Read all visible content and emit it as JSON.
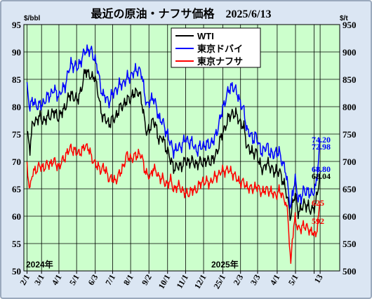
{
  "chart_data": {
    "type": "line",
    "title": "最近の原油・ナフサ価格　2025/6/13",
    "left_axis": {
      "unit": "$/bbl",
      "ylim": [
        50,
        95
      ],
      "ticks": [
        "50",
        "55",
        "60",
        "65",
        "70",
        "75",
        "80",
        "85",
        "90",
        "95"
      ]
    },
    "right_axis": {
      "unit": "$/t",
      "ylim": [
        500,
        950
      ],
      "ticks": [
        "500",
        "550",
        "600",
        "650",
        "700",
        "750",
        "800",
        "850",
        "900",
        "950"
      ]
    },
    "x_ticks": [
      "2/1",
      "3/1",
      "4/1",
      "5/1",
      "6/3",
      "7/1",
      "8/1",
      "9/2",
      "10/1",
      "11/1",
      "12/1",
      "25/1",
      "2/3",
      "3/3",
      "4/1",
      "5/1",
      "",
      "13"
    ],
    "year_labels": [
      "2024年",
      "2025年"
    ],
    "grid": true,
    "legend_position": "top-center",
    "colors": {
      "plot_bg": "#ccffcc",
      "wti": "#000000",
      "dubai": "#0000ff",
      "naphtha": "#ff0000"
    },
    "series": [
      {
        "name": "WTI",
        "axis": "left",
        "color": "#000000",
        "points": [
          [
            0,
            75.5
          ],
          [
            2,
            72.5
          ],
          [
            4,
            77
          ],
          [
            8,
            78
          ],
          [
            12,
            77.5
          ],
          [
            18,
            79
          ],
          [
            22,
            78
          ],
          [
            26,
            80
          ],
          [
            30,
            82.5
          ],
          [
            34,
            81
          ],
          [
            38,
            84
          ],
          [
            40,
            87
          ],
          [
            42,
            86
          ],
          [
            44,
            85
          ],
          [
            46,
            86
          ],
          [
            48,
            83
          ],
          [
            50,
            80
          ],
          [
            52,
            78
          ],
          [
            56,
            77
          ],
          [
            60,
            78
          ],
          [
            64,
            80
          ],
          [
            68,
            81
          ],
          [
            72,
            82
          ],
          [
            76,
            83
          ],
          [
            78,
            81
          ],
          [
            80,
            78
          ],
          [
            82,
            75
          ],
          [
            84,
            76
          ],
          [
            86,
            78
          ],
          [
            88,
            76
          ],
          [
            90,
            74
          ],
          [
            92,
            74.5
          ],
          [
            94,
            73
          ],
          [
            96,
            72
          ],
          [
            98,
            70
          ],
          [
            100,
            69
          ],
          [
            104,
            69
          ],
          [
            108,
            70
          ],
          [
            112,
            70
          ],
          [
            116,
            69.5
          ],
          [
            120,
            70
          ],
          [
            124,
            70
          ],
          [
            128,
            70.5
          ],
          [
            132,
            74
          ],
          [
            136,
            77
          ],
          [
            140,
            79
          ],
          [
            144,
            78
          ],
          [
            148,
            76
          ],
          [
            150,
            73
          ],
          [
            152,
            72
          ],
          [
            154,
            71.5
          ],
          [
            156,
            72
          ],
          [
            158,
            70
          ],
          [
            160,
            69
          ],
          [
            162,
            68.5
          ],
          [
            164,
            70
          ],
          [
            166,
            69
          ],
          [
            168,
            68
          ],
          [
            170,
            68.5
          ],
          [
            172,
            68
          ],
          [
            174,
            67
          ],
          [
            176,
            65.5
          ],
          [
            178,
            62.5
          ],
          [
            180,
            60
          ],
          [
            181,
            62
          ],
          [
            183,
            64
          ],
          [
            185,
            61
          ],
          [
            187,
            61
          ],
          [
            189,
            62.5
          ],
          [
            191,
            62
          ],
          [
            193,
            61
          ],
          [
            195,
            61.5
          ],
          [
            197,
            62
          ],
          [
            198,
            64
          ],
          [
            200,
            68.04
          ]
        ]
      },
      {
        "name": "東京ドバイ",
        "axis": "left",
        "color": "#0000ff",
        "points": [
          [
            0,
            83.5
          ],
          [
            2,
            80
          ],
          [
            4,
            81
          ],
          [
            8,
            80
          ],
          [
            12,
            81
          ],
          [
            18,
            83
          ],
          [
            22,
            82
          ],
          [
            26,
            84
          ],
          [
            30,
            88
          ],
          [
            34,
            87
          ],
          [
            38,
            89
          ],
          [
            40,
            90.5
          ],
          [
            42,
            90.3
          ],
          [
            44,
            90
          ],
          [
            46,
            89
          ],
          [
            48,
            87
          ],
          [
            50,
            84
          ],
          [
            52,
            82
          ],
          [
            56,
            81
          ],
          [
            60,
            83
          ],
          [
            64,
            84
          ],
          [
            68,
            85
          ],
          [
            72,
            86
          ],
          [
            76,
            87
          ],
          [
            78,
            86
          ],
          [
            80,
            83
          ],
          [
            82,
            80
          ],
          [
            84,
            81
          ],
          [
            86,
            82
          ],
          [
            88,
            80
          ],
          [
            90,
            78
          ],
          [
            92,
            77.5
          ],
          [
            94,
            76
          ],
          [
            96,
            75
          ],
          [
            98,
            73
          ],
          [
            100,
            72
          ],
          [
            104,
            72.5
          ],
          [
            108,
            74
          ],
          [
            112,
            73.5
          ],
          [
            116,
            72
          ],
          [
            120,
            73
          ],
          [
            124,
            73
          ],
          [
            128,
            74
          ],
          [
            132,
            78
          ],
          [
            136,
            82
          ],
          [
            140,
            84
          ],
          [
            144,
            82
          ],
          [
            148,
            79
          ],
          [
            150,
            76
          ],
          [
            152,
            75
          ],
          [
            154,
            74
          ],
          [
            156,
            75
          ],
          [
            158,
            73
          ],
          [
            160,
            72
          ],
          [
            162,
            72
          ],
          [
            164,
            73
          ],
          [
            166,
            71.5
          ],
          [
            168,
            71
          ],
          [
            170,
            72
          ],
          [
            172,
            71.5
          ],
          [
            174,
            70
          ],
          [
            176,
            69
          ],
          [
            178,
            65
          ],
          [
            180,
            61.5
          ],
          [
            181,
            64
          ],
          [
            183,
            66.5
          ],
          [
            185,
            63.5
          ],
          [
            187,
            63
          ],
          [
            189,
            65
          ],
          [
            191,
            64.5
          ],
          [
            193,
            64
          ],
          [
            195,
            64.5
          ],
          [
            197,
            65
          ],
          [
            198,
            67.5
          ],
          [
            200,
            74.2
          ]
        ]
      },
      {
        "name": "東京ナフサ",
        "axis": "right",
        "color": "#ff0000",
        "points": [
          [
            0,
            690
          ],
          [
            2,
            650
          ],
          [
            4,
            680
          ],
          [
            8,
            690
          ],
          [
            12,
            690
          ],
          [
            18,
            700
          ],
          [
            22,
            690
          ],
          [
            26,
            710
          ],
          [
            30,
            725
          ],
          [
            34,
            715
          ],
          [
            38,
            720
          ],
          [
            40,
            730
          ],
          [
            42,
            725
          ],
          [
            44,
            705
          ],
          [
            46,
            700
          ],
          [
            48,
            690
          ],
          [
            50,
            685
          ],
          [
            52,
            690
          ],
          [
            56,
            670
          ],
          [
            60,
            665
          ],
          [
            64,
            680
          ],
          [
            68,
            710
          ],
          [
            72,
            705
          ],
          [
            76,
            715
          ],
          [
            78,
            710
          ],
          [
            80,
            690
          ],
          [
            82,
            675
          ],
          [
            84,
            670
          ],
          [
            86,
            690
          ],
          [
            88,
            680
          ],
          [
            90,
            672
          ],
          [
            92,
            670
          ],
          [
            94,
            660
          ],
          [
            96,
            660
          ],
          [
            98,
            665
          ],
          [
            100,
            650
          ],
          [
            104,
            655
          ],
          [
            108,
            640
          ],
          [
            112,
            645
          ],
          [
            116,
            650
          ],
          [
            120,
            665
          ],
          [
            124,
            660
          ],
          [
            128,
            670
          ],
          [
            132,
            680
          ],
          [
            136,
            685
          ],
          [
            140,
            680
          ],
          [
            144,
            665
          ],
          [
            148,
            660
          ],
          [
            150,
            655
          ],
          [
            152,
            650
          ],
          [
            154,
            650
          ],
          [
            156,
            655
          ],
          [
            158,
            650
          ],
          [
            160,
            645
          ],
          [
            162,
            645
          ],
          [
            164,
            650
          ],
          [
            166,
            645
          ],
          [
            168,
            640
          ],
          [
            170,
            640
          ],
          [
            172,
            645
          ],
          [
            174,
            640
          ],
          [
            176,
            630
          ],
          [
            178,
            600
          ],
          [
            180,
            510
          ],
          [
            181,
            560
          ],
          [
            183,
            595
          ],
          [
            185,
            580
          ],
          [
            187,
            575
          ],
          [
            189,
            585
          ],
          [
            191,
            580
          ],
          [
            193,
            570
          ],
          [
            195,
            575
          ],
          [
            197,
            560
          ],
          [
            198,
            580
          ],
          [
            200,
            625
          ]
        ]
      }
    ],
    "end_labels": [
      {
        "text": "74.20",
        "color": "#0000ff"
      },
      {
        "text": "72.98",
        "color": "#0000ff"
      },
      {
        "text": "68.80",
        "color": "#0000ff"
      },
      {
        "text": "68.04",
        "color": "#000000"
      },
      {
        "text": "625",
        "color": "#ff0000"
      },
      {
        "text": "592",
        "color": "#ff0000"
      }
    ]
  }
}
